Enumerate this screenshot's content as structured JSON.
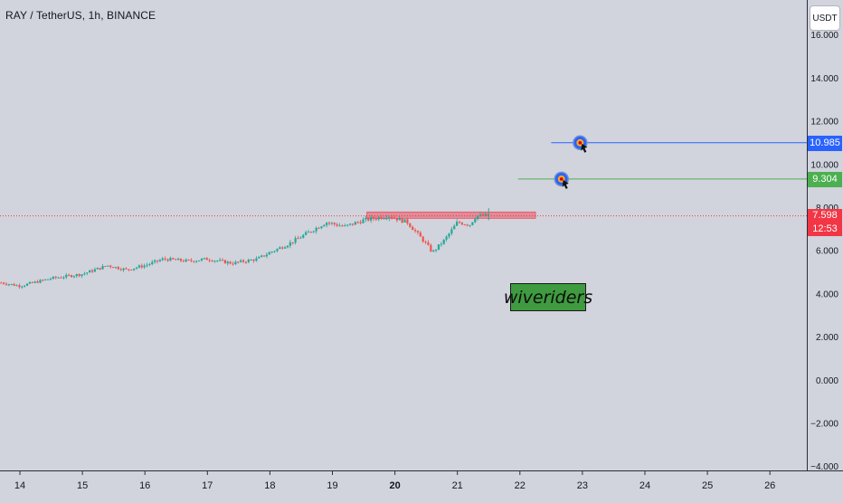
{
  "header": {
    "title": "RAY / TetherUS, 1h, BINANCE"
  },
  "currency": "USDT",
  "watermark": {
    "text": "wiveriders"
  },
  "colors": {
    "up": "#26a69a",
    "down": "#ef5350",
    "target1": "#2962ff",
    "target2": "#4caf50",
    "last_price": "#f23645",
    "resistance": "#f23645",
    "watermark_bg": "#3f9b3f"
  },
  "chart_data": {
    "type": "candlestick",
    "y_ticks": [
      "16.000",
      "14.000",
      "12.000",
      "10.000",
      "8.000",
      "6.000",
      "4.000",
      "2.000",
      "0.000",
      "−2.000",
      "−4.000"
    ],
    "x_ticks": [
      "14",
      "15",
      "16",
      "17",
      "18",
      "19",
      "20",
      "21",
      "22",
      "23",
      "24",
      "25",
      "26"
    ],
    "ylim": [
      -4.2,
      17.6
    ],
    "price_path": [
      {
        "day": 13.7,
        "price": 4.5
      },
      {
        "day": 14.0,
        "price": 4.35
      },
      {
        "day": 14.5,
        "price": 4.7
      },
      {
        "day": 15.0,
        "price": 4.9
      },
      {
        "day": 15.4,
        "price": 5.3
      },
      {
        "day": 15.7,
        "price": 5.1
      },
      {
        "day": 16.0,
        "price": 5.3
      },
      {
        "day": 16.3,
        "price": 5.6
      },
      {
        "day": 16.7,
        "price": 5.5
      },
      {
        "day": 17.0,
        "price": 5.6
      },
      {
        "day": 17.4,
        "price": 5.4
      },
      {
        "day": 17.8,
        "price": 5.6
      },
      {
        "day": 18.0,
        "price": 5.9
      },
      {
        "day": 18.3,
        "price": 6.3
      },
      {
        "day": 18.6,
        "price": 6.8
      },
      {
        "day": 18.9,
        "price": 7.3
      },
      {
        "day": 19.2,
        "price": 7.1
      },
      {
        "day": 19.5,
        "price": 7.4
      },
      {
        "day": 19.9,
        "price": 7.6
      },
      {
        "day": 20.2,
        "price": 7.3
      },
      {
        "day": 20.5,
        "price": 6.3
      },
      {
        "day": 20.6,
        "price": 5.9
      },
      {
        "day": 20.8,
        "price": 6.5
      },
      {
        "day": 21.0,
        "price": 7.3
      },
      {
        "day": 21.2,
        "price": 7.2
      },
      {
        "day": 21.3,
        "price": 7.6
      },
      {
        "day": 21.5,
        "price": 7.6
      }
    ],
    "target_lines": [
      {
        "price": 10.985,
        "label": "10.985",
        "from_day": 22.5,
        "color_key": "target1"
      },
      {
        "price": 9.304,
        "label": "9.304",
        "from_day": 21.97,
        "color_key": "target2"
      }
    ],
    "resistance_zone": {
      "from_day": 19.55,
      "to_day": 22.25,
      "low": 7.48,
      "high": 7.78
    },
    "last_price": {
      "price": 7.598,
      "label": "7.598",
      "countdown": "12:53"
    }
  }
}
